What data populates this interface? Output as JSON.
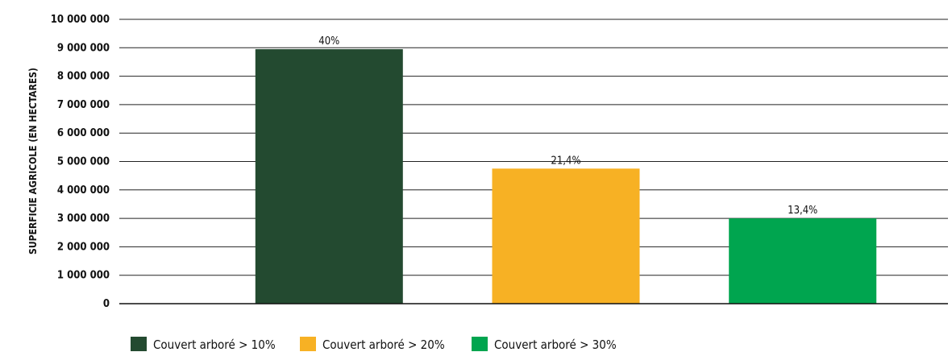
{
  "chart_data": {
    "type": "bar",
    "ylabel": "SUPERFICIE AGRICOLE (EN HECTARES)",
    "ylim": [
      0,
      10000000
    ],
    "yticks": [
      0,
      1000000,
      2000000,
      3000000,
      4000000,
      5000000,
      6000000,
      7000000,
      8000000,
      9000000,
      10000000
    ],
    "ytick_labels": [
      "0",
      "1 000 000",
      "2 000 000",
      "3 000 000",
      "4 000 000",
      "5 000 000",
      "6 000 000",
      "7 000 000",
      "8 000 000",
      "9 000 000",
      "10 000 000"
    ],
    "grid": true,
    "legend_position": "bottom-left",
    "series": [
      {
        "name": "Couvert arboré > 10%",
        "value": 8950000,
        "label": "40%",
        "color": "#234a30"
      },
      {
        "name": "Couvert arboré > 20%",
        "value": 4750000,
        "label": "21,4%",
        "color": "#f7b124"
      },
      {
        "name": "Couvert arboré > 30%",
        "value": 3000000,
        "label": "13,4%",
        "color": "#00a54f"
      }
    ]
  }
}
